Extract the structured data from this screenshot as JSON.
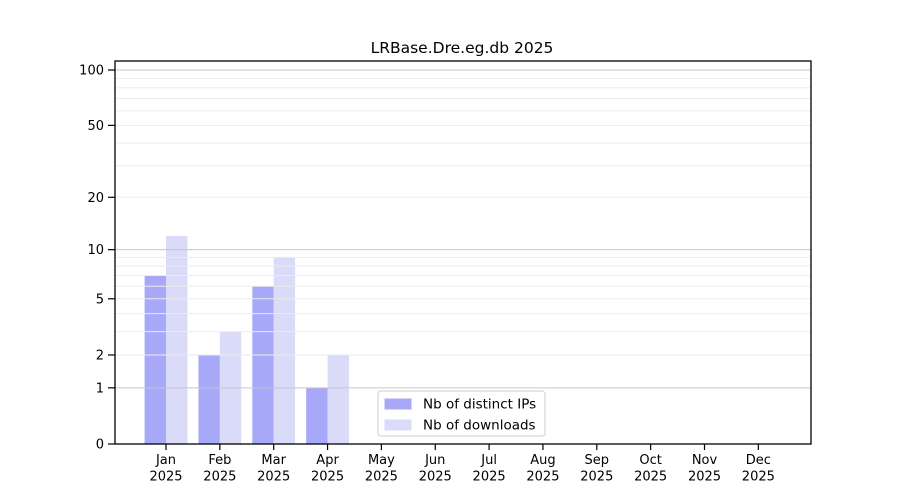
{
  "chart_data": {
    "type": "bar",
    "title": "LRBase.Dre.eg.db 2025",
    "categories": [
      "Jan 2025",
      "Feb 2025",
      "Mar 2025",
      "Apr 2025",
      "May 2025",
      "Jun 2025",
      "Jul 2025",
      "Aug 2025",
      "Sep 2025",
      "Oct 2025",
      "Nov 2025",
      "Dec 2025"
    ],
    "series": [
      {
        "key": "distinct-ips",
        "name": "Nb of distinct IPs",
        "color": "#a8a8f8",
        "values": [
          7,
          2,
          6,
          1,
          0,
          0,
          0,
          0,
          0,
          0,
          0,
          0
        ]
      },
      {
        "key": "downloads",
        "name": "Nb of downloads",
        "color": "#dadaf9",
        "values": [
          12,
          3,
          9,
          2,
          0,
          0,
          0,
          0,
          0,
          0,
          0,
          0
        ]
      }
    ],
    "xlabel": "",
    "ylabel": "",
    "y_axis": {
      "scale": "symlog",
      "ticks": [
        0,
        1,
        2,
        5,
        10,
        20,
        50,
        100
      ],
      "ylim": [
        0,
        100
      ],
      "decade_gridlines": [
        1,
        10,
        100
      ],
      "light_gridlines": [
        2,
        3,
        4,
        5,
        6,
        7,
        8,
        9,
        20,
        30,
        40,
        50,
        60,
        70,
        80,
        90
      ]
    },
    "grid": true,
    "legend_position": "inside-bottom-center",
    "colors": {
      "grid_decade": "#c6c6c6",
      "grid_light": "#ebebeb",
      "axis": "#000000",
      "legend_border": "#cccccc",
      "background": "#ffffff"
    }
  }
}
